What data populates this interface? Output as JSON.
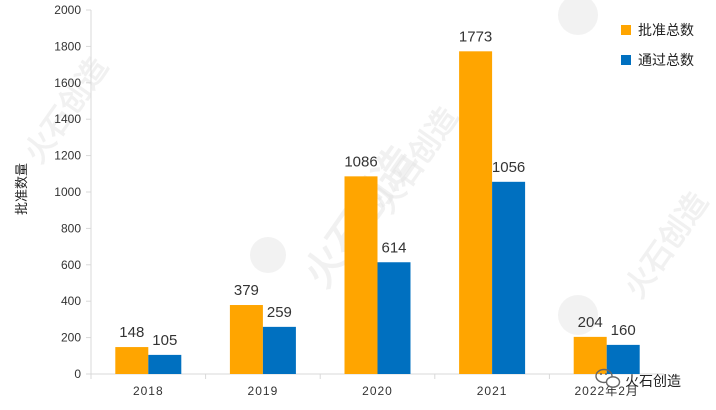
{
  "chart_data": {
    "type": "bar",
    "categories": [
      "2018",
      "2019",
      "2020",
      "2021",
      "2022年2月"
    ],
    "series": [
      {
        "name": "批准总数",
        "values": [
          148,
          379,
          1086,
          1773,
          204
        ],
        "color": "#FFA500"
      },
      {
        "name": "通过总数",
        "values": [
          105,
          259,
          614,
          1056,
          160
        ],
        "color": "#0070C0"
      }
    ],
    "ylabel": "批准数量",
    "xlabel": "",
    "ylim": [
      0,
      2000
    ],
    "yticks": [
      0,
      200,
      400,
      600,
      800,
      1000,
      1200,
      1400,
      1600,
      1800,
      2000
    ],
    "grid": false,
    "legend_position": "top-right"
  },
  "brand": {
    "name": "火石创造",
    "icon": "wechat-icon"
  },
  "watermark": {
    "text": "火石创造"
  }
}
